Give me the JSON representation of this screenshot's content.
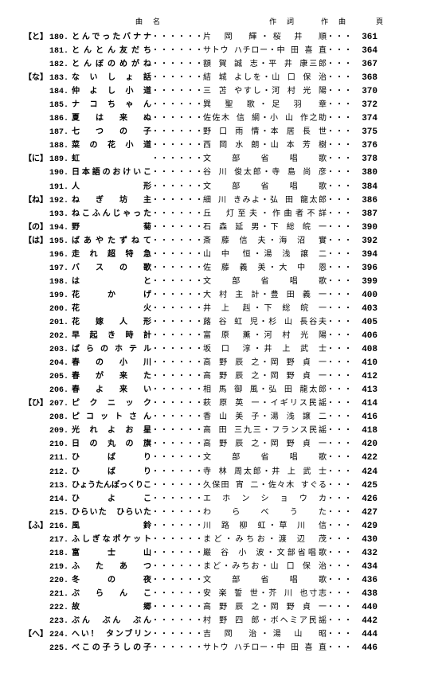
{
  "header": {
    "title": "曲　名",
    "lyric": "作　詞",
    "music": "作　曲",
    "page": "頁"
  },
  "rows": [
    {
      "group": "【と】",
      "num": "180.",
      "title": "とんでったバナナ",
      "credit": "片 岡　輝・桜 井　順",
      "page": "361"
    },
    {
      "group": "",
      "num": "181.",
      "title": "とんとん友だち",
      "credit": "サトウ ハチロー・中 田 喜 直",
      "page": "364"
    },
    {
      "group": "",
      "num": "182.",
      "title": "とんぼのめがね",
      "credit": "額 賀 誠 志・平 井 康三郎",
      "page": "367"
    },
    {
      "group": "【な】",
      "num": "183.",
      "title": "ないしょ話",
      "credit": "結 城 よしを・山 口 保 治",
      "page": "368"
    },
    {
      "group": "",
      "num": "184.",
      "title": "仲よし小道",
      "credit": "三 苫 やすし・河 村 光 陽",
      "page": "370"
    },
    {
      "group": "",
      "num": "185.",
      "title": "ナコちゃん",
      "credit": "巽 聖 歌・足 羽　章",
      "page": "372"
    },
    {
      "group": "",
      "num": "186.",
      "title": "夏は来ぬ",
      "credit": "佐佐木 信 綱・小 山 作之助",
      "page": "374"
    },
    {
      "group": "",
      "num": "187.",
      "title": "七つの子",
      "credit": "野 口 雨 情・本 居 長 世",
      "page": "375"
    },
    {
      "group": "",
      "num": "188.",
      "title": "菜の花小道",
      "credit": "西 岡 水 朗・山 本 芳 樹",
      "page": "376"
    },
    {
      "group": "【に】",
      "num": "189.",
      "title": "虹",
      "credit": "文　部　省　唱　歌",
      "page": "378"
    },
    {
      "group": "",
      "num": "190.",
      "title": "日本語のおけいこ",
      "credit": "谷 川 俊太郎・寺 島 尚 彦",
      "page": "380"
    },
    {
      "group": "",
      "num": "191.",
      "title": "人形",
      "credit": "文　部　省　唱　歌",
      "page": "384"
    },
    {
      "group": "【ね】",
      "num": "192.",
      "title": "ねぎ坊主",
      "credit": "細 川 きみよ・弘 田 龍太郎",
      "page": "386"
    },
    {
      "group": "",
      "num": "193.",
      "title": "ねこふんじゃった",
      "credit": "丘　灯至夫・作曲者不詳",
      "page": "387"
    },
    {
      "group": "【の】",
      "num": "194.",
      "title": "野菊",
      "credit": "石 森 延 男・下 総 皖 一",
      "page": "390"
    },
    {
      "group": "【は】",
      "num": "195.",
      "title": "ばあやたずねて",
      "credit": "斎 藤 信 夫・海 沼　實",
      "page": "392"
    },
    {
      "group": "",
      "num": "196.",
      "title": "走れ超特急",
      "credit": "山 中　恒・湯 浅 譲 二",
      "page": "394"
    },
    {
      "group": "",
      "num": "197.",
      "title": "バスの歌",
      "credit": "佐 藤 義 美・大 中　恩",
      "page": "396"
    },
    {
      "group": "",
      "num": "198.",
      "title": "はと",
      "credit": "文　部　省　唱　歌",
      "page": "399"
    },
    {
      "group": "",
      "num": "199.",
      "title": "花かげ",
      "credit": "大 村 主 計・豊 田 義 一",
      "page": "400"
    },
    {
      "group": "",
      "num": "200.",
      "title": "花火",
      "credit": "井 上　赳・下 総 皖 一",
      "page": "403"
    },
    {
      "group": "",
      "num": "201.",
      "title": "花嫁人形",
      "credit": "蕗 谷 虹 児・杉 山 長谷夫",
      "page": "405"
    },
    {
      "group": "",
      "num": "202.",
      "title": "早起き時計",
      "credit": "富 原　薫・河 村 光 陽",
      "page": "406"
    },
    {
      "group": "",
      "num": "203.",
      "title": "ばらのホテル",
      "credit": "坂 口　淳・井 上 武 士",
      "page": "408"
    },
    {
      "group": "",
      "num": "204.",
      "title": "春の小川",
      "credit": "高 野 辰 之・岡 野 貞 一",
      "page": "410"
    },
    {
      "group": "",
      "num": "205.",
      "title": "春が来た",
      "credit": "高 野 辰 之・岡 野 貞 一",
      "page": "412"
    },
    {
      "group": "",
      "num": "206.",
      "title": "春よ来い",
      "credit": "相 馬 御 風・弘 田 龍太郎",
      "page": "413"
    },
    {
      "group": "【ひ】",
      "num": "207.",
      "title": "ピクニック",
      "credit": "萩 原 英 一・イギリス民謡",
      "page": "414"
    },
    {
      "group": "",
      "num": "208.",
      "title": "ピコットさん",
      "credit": "香 山 美 子・湯 浅 譲 二",
      "page": "416"
    },
    {
      "group": "",
      "num": "209.",
      "title": "光れよお星",
      "credit": "高 田 三九三・フランス民謡",
      "page": "418"
    },
    {
      "group": "",
      "num": "210.",
      "title": "日の丸の旗",
      "credit": "高 野 辰 之・岡 野 貞 一",
      "page": "420"
    },
    {
      "group": "",
      "num": "211.",
      "title": "ひばり",
      "credit": "文　部　省　唱　歌",
      "page": "422"
    },
    {
      "group": "",
      "num": "212.",
      "title": "ひばり",
      "credit": "寺 林 周太郎・井 上 武 士",
      "page": "424"
    },
    {
      "group": "",
      "num": "213.",
      "title": "ひょうたんぽっくりこ",
      "credit": "久保田 宵 二・佐々木 すぐる",
      "page": "425"
    },
    {
      "group": "",
      "num": "214.",
      "title": "ひよこ",
      "credit": "エ ホ ン シ ョ ウ カ",
      "page": "426"
    },
    {
      "group": "",
      "num": "215.",
      "title": "ひらいた　ひらいた",
      "credit": "わ　ら　べ　う　た",
      "page": "427"
    },
    {
      "group": "【ふ】",
      "num": "216.",
      "title": "風鈴",
      "credit": "川 路 柳 虹・草 川　信",
      "page": "429"
    },
    {
      "group": "",
      "num": "217.",
      "title": "ふしぎなポケット",
      "credit": "まど・みちお・渡 辺　茂",
      "page": "430"
    },
    {
      "group": "",
      "num": "218.",
      "title": "富士山",
      "credit": "巌 谷 小 波・文部省唱歌",
      "page": "432"
    },
    {
      "group": "",
      "num": "219.",
      "title": "ふたあつ",
      "credit": "まど・みちお・山 口 保 治",
      "page": "434"
    },
    {
      "group": "",
      "num": "220.",
      "title": "冬の夜",
      "credit": "文　部　省　唱　歌",
      "page": "436"
    },
    {
      "group": "",
      "num": "221.",
      "title": "ぶらんこ",
      "credit": "安 楽 誓 世・芥 川 也寸志",
      "page": "438"
    },
    {
      "group": "",
      "num": "222.",
      "title": "故郷",
      "credit": "高 野 辰 之・岡 野 貞 一",
      "page": "440"
    },
    {
      "group": "",
      "num": "223.",
      "title": "ぶん　ぶん　ぶん",
      "credit": "村 野 四 郎・ボヘミア民謡",
      "page": "442"
    },
    {
      "group": "【へ】",
      "num": "224.",
      "title": "へい！ タンブリン",
      "credit": "吉 岡　治・湯 山　昭",
      "page": "444"
    },
    {
      "group": "",
      "num": "225.",
      "title": "べこの子うしの子",
      "credit": "サトウ ハチロー・中 田 喜 直",
      "page": "446"
    }
  ]
}
